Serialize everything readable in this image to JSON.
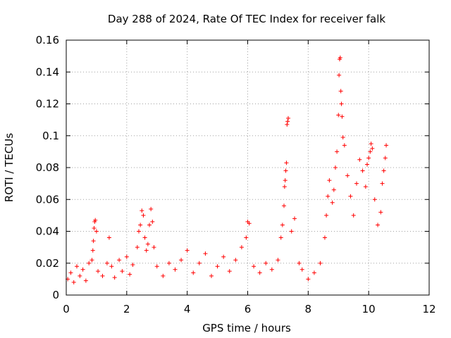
{
  "chart_data": {
    "type": "scatter",
    "title": "Day 288 of 2024, Rate Of TEC Index for receiver falk",
    "xlabel": "GPS time / hours",
    "ylabel": "ROTI / TECUs",
    "xlim": [
      0,
      12
    ],
    "ylim": [
      0,
      0.16
    ],
    "xticks": [
      0,
      2,
      4,
      6,
      8,
      10,
      12
    ],
    "xtick_labels": [
      "0",
      "2",
      "4",
      "6",
      "8",
      "10",
      "12"
    ],
    "yticks": [
      0,
      0.02,
      0.04,
      0.06,
      0.08,
      0.1,
      0.12,
      0.14,
      0.16
    ],
    "ytick_labels": [
      "0",
      "0.02",
      "0.04",
      "0.06",
      "0.08",
      "0.1",
      "0.12",
      "0.14",
      "0.16"
    ],
    "grid": true,
    "marker": "+",
    "color": "#ff0000",
    "series": [
      {
        "name": "ROTI",
        "points": [
          [
            0.05,
            0.01
          ],
          [
            0.15,
            0.014
          ],
          [
            0.25,
            0.008
          ],
          [
            0.35,
            0.018
          ],
          [
            0.45,
            0.012
          ],
          [
            0.55,
            0.016
          ],
          [
            0.65,
            0.009
          ],
          [
            0.75,
            0.02
          ],
          [
            0.85,
            0.022
          ],
          [
            0.88,
            0.028
          ],
          [
            0.9,
            0.034
          ],
          [
            0.92,
            0.042
          ],
          [
            0.94,
            0.046
          ],
          [
            0.96,
            0.047
          ],
          [
            1.0,
            0.04
          ],
          [
            1.05,
            0.015
          ],
          [
            1.2,
            0.012
          ],
          [
            1.35,
            0.02
          ],
          [
            1.42,
            0.036
          ],
          [
            1.5,
            0.018
          ],
          [
            1.6,
            0.011
          ],
          [
            1.75,
            0.022
          ],
          [
            1.85,
            0.015
          ],
          [
            2.0,
            0.024
          ],
          [
            2.1,
            0.013
          ],
          [
            2.2,
            0.019
          ],
          [
            2.35,
            0.03
          ],
          [
            2.4,
            0.04
          ],
          [
            2.45,
            0.044
          ],
          [
            2.5,
            0.053
          ],
          [
            2.55,
            0.05
          ],
          [
            2.6,
            0.036
          ],
          [
            2.65,
            0.028
          ],
          [
            2.7,
            0.032
          ],
          [
            2.75,
            0.044
          ],
          [
            2.8,
            0.054
          ],
          [
            2.85,
            0.046
          ],
          [
            2.9,
            0.03
          ],
          [
            3.0,
            0.018
          ],
          [
            3.2,
            0.012
          ],
          [
            3.4,
            0.02
          ],
          [
            3.6,
            0.016
          ],
          [
            3.8,
            0.022
          ],
          [
            4.0,
            0.028
          ],
          [
            4.2,
            0.014
          ],
          [
            4.4,
            0.02
          ],
          [
            4.6,
            0.026
          ],
          [
            4.8,
            0.012
          ],
          [
            5.0,
            0.018
          ],
          [
            5.2,
            0.024
          ],
          [
            5.4,
            0.015
          ],
          [
            5.6,
            0.022
          ],
          [
            5.8,
            0.03
          ],
          [
            5.95,
            0.036
          ],
          [
            6.0,
            0.046
          ],
          [
            6.05,
            0.045
          ],
          [
            6.2,
            0.018
          ],
          [
            6.4,
            0.014
          ],
          [
            6.6,
            0.02
          ],
          [
            6.8,
            0.016
          ],
          [
            7.0,
            0.022
          ],
          [
            7.1,
            0.036
          ],
          [
            7.15,
            0.044
          ],
          [
            7.2,
            0.056
          ],
          [
            7.22,
            0.068
          ],
          [
            7.24,
            0.072
          ],
          [
            7.26,
            0.078
          ],
          [
            7.28,
            0.083
          ],
          [
            7.3,
            0.107
          ],
          [
            7.32,
            0.109
          ],
          [
            7.34,
            0.111
          ],
          [
            7.45,
            0.04
          ],
          [
            7.55,
            0.048
          ],
          [
            7.7,
            0.02
          ],
          [
            7.8,
            0.016
          ],
          [
            8.0,
            0.01
          ],
          [
            8.2,
            0.014
          ],
          [
            8.4,
            0.02
          ],
          [
            8.55,
            0.036
          ],
          [
            8.6,
            0.05
          ],
          [
            8.65,
            0.062
          ],
          [
            8.7,
            0.072
          ],
          [
            8.8,
            0.058
          ],
          [
            8.85,
            0.066
          ],
          [
            8.9,
            0.08
          ],
          [
            8.95,
            0.09
          ],
          [
            9.0,
            0.113
          ],
          [
            9.02,
            0.138
          ],
          [
            9.04,
            0.148
          ],
          [
            9.06,
            0.149
          ],
          [
            9.08,
            0.128
          ],
          [
            9.1,
            0.12
          ],
          [
            9.12,
            0.112
          ],
          [
            9.15,
            0.099
          ],
          [
            9.2,
            0.094
          ],
          [
            9.3,
            0.075
          ],
          [
            9.4,
            0.062
          ],
          [
            9.5,
            0.05
          ],
          [
            9.6,
            0.07
          ],
          [
            9.7,
            0.085
          ],
          [
            9.8,
            0.078
          ],
          [
            9.9,
            0.068
          ],
          [
            9.95,
            0.082
          ],
          [
            10.0,
            0.086
          ],
          [
            10.05,
            0.09
          ],
          [
            10.08,
            0.095
          ],
          [
            10.12,
            0.092
          ],
          [
            10.2,
            0.06
          ],
          [
            10.3,
            0.044
          ],
          [
            10.4,
            0.052
          ],
          [
            10.45,
            0.07
          ],
          [
            10.5,
            0.078
          ],
          [
            10.55,
            0.086
          ],
          [
            10.58,
            0.094
          ]
        ]
      }
    ]
  }
}
